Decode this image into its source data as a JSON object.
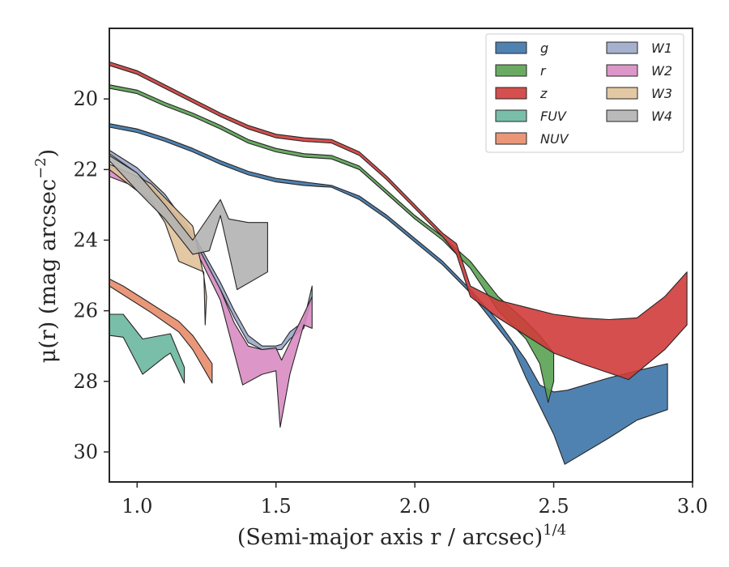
{
  "chart_data": {
    "type": "area",
    "xlabel": "(Semi-major axis r / arcsec)",
    "xlabel_exp": "1/4",
    "ylabel": "μ(r) (mag arcsec",
    "ylabel_exp": "−2",
    "xlim": [
      0.9,
      3.0
    ],
    "ylim": [
      30.85,
      18.0
    ],
    "y_inverted": true,
    "x_ticks": [
      1.0,
      1.5,
      2.0,
      2.5,
      3.0
    ],
    "x_tick_labels": [
      "1.0",
      "1.5",
      "2.0",
      "2.5",
      "3.0"
    ],
    "y_ticks": [
      20,
      22,
      24,
      26,
      28,
      30
    ],
    "y_tick_labels": [
      "20",
      "22",
      "24",
      "26",
      "28",
      "30"
    ],
    "grid": false,
    "legend_position": "top-right",
    "series": [
      {
        "name": "g",
        "color": "#3d74a8",
        "upper": [
          [
            0.9,
            20.7
          ],
          [
            1.0,
            20.85
          ],
          [
            1.1,
            21.1
          ],
          [
            1.2,
            21.4
          ],
          [
            1.3,
            21.75
          ],
          [
            1.4,
            22.05
          ],
          [
            1.5,
            22.25
          ],
          [
            1.6,
            22.35
          ],
          [
            1.65,
            22.4
          ],
          [
            1.7,
            22.45
          ],
          [
            1.8,
            22.75
          ],
          [
            1.9,
            23.3
          ],
          [
            2.0,
            23.95
          ],
          [
            2.1,
            24.6
          ],
          [
            2.2,
            25.4
          ],
          [
            2.3,
            26.3
          ],
          [
            2.4,
            27.4
          ],
          [
            2.45,
            28.1
          ],
          [
            2.5,
            28.3
          ],
          [
            2.55,
            28.25
          ],
          [
            2.7,
            27.9
          ],
          [
            2.8,
            27.7
          ],
          [
            2.91,
            27.5
          ]
        ],
        "lower": [
          [
            0.9,
            20.8
          ],
          [
            1.0,
            20.95
          ],
          [
            1.1,
            21.2
          ],
          [
            1.2,
            21.5
          ],
          [
            1.3,
            21.85
          ],
          [
            1.4,
            22.15
          ],
          [
            1.5,
            22.35
          ],
          [
            1.6,
            22.45
          ],
          [
            1.65,
            22.48
          ],
          [
            1.7,
            22.5
          ],
          [
            1.8,
            22.85
          ],
          [
            1.9,
            23.4
          ],
          [
            2.0,
            24.05
          ],
          [
            2.1,
            24.7
          ],
          [
            2.2,
            25.5
          ],
          [
            2.3,
            26.5
          ],
          [
            2.35,
            27.0
          ],
          [
            2.4,
            27.9
          ],
          [
            2.45,
            28.7
          ],
          [
            2.5,
            29.5
          ],
          [
            2.54,
            30.35
          ],
          [
            2.7,
            29.6
          ],
          [
            2.8,
            29.1
          ],
          [
            2.91,
            28.8
          ]
        ]
      },
      {
        "name": "r",
        "color": "#5aa252",
        "upper": [
          [
            0.9,
            19.6
          ],
          [
            1.0,
            19.75
          ],
          [
            1.1,
            20.1
          ],
          [
            1.2,
            20.4
          ],
          [
            1.3,
            20.75
          ],
          [
            1.4,
            21.15
          ],
          [
            1.5,
            21.4
          ],
          [
            1.6,
            21.55
          ],
          [
            1.7,
            21.6
          ],
          [
            1.8,
            21.9
          ],
          [
            1.9,
            22.6
          ],
          [
            2.0,
            23.3
          ],
          [
            2.1,
            23.9
          ],
          [
            2.2,
            24.6
          ],
          [
            2.3,
            25.6
          ],
          [
            2.4,
            26.3
          ],
          [
            2.45,
            26.7
          ],
          [
            2.5,
            27.2
          ]
        ],
        "lower": [
          [
            0.9,
            19.7
          ],
          [
            1.0,
            19.85
          ],
          [
            1.1,
            20.2
          ],
          [
            1.2,
            20.5
          ],
          [
            1.3,
            20.85
          ],
          [
            1.4,
            21.25
          ],
          [
            1.5,
            21.5
          ],
          [
            1.6,
            21.65
          ],
          [
            1.7,
            21.7
          ],
          [
            1.8,
            22.0
          ],
          [
            1.9,
            22.7
          ],
          [
            2.0,
            23.4
          ],
          [
            2.1,
            24.0
          ],
          [
            2.2,
            24.8
          ],
          [
            2.3,
            26.0
          ],
          [
            2.4,
            26.8
          ],
          [
            2.45,
            27.5
          ],
          [
            2.48,
            28.6
          ],
          [
            2.5,
            28.0
          ]
        ]
      },
      {
        "name": "z",
        "color": "#cf3c3a",
        "upper": [
          [
            0.9,
            18.95
          ],
          [
            1.0,
            19.2
          ],
          [
            1.1,
            19.6
          ],
          [
            1.2,
            20.0
          ],
          [
            1.3,
            20.4
          ],
          [
            1.4,
            20.75
          ],
          [
            1.5,
            21.0
          ],
          [
            1.6,
            21.1
          ],
          [
            1.7,
            21.15
          ],
          [
            1.8,
            21.5
          ],
          [
            1.9,
            22.2
          ],
          [
            2.0,
            23.0
          ],
          [
            2.1,
            23.8
          ],
          [
            2.15,
            24.1
          ],
          [
            2.2,
            25.3
          ],
          [
            2.3,
            25.7
          ],
          [
            2.4,
            25.9
          ],
          [
            2.5,
            26.1
          ],
          [
            2.6,
            26.2
          ],
          [
            2.7,
            26.25
          ],
          [
            2.8,
            26.2
          ],
          [
            2.9,
            25.6
          ],
          [
            2.98,
            24.9
          ]
        ],
        "lower": [
          [
            0.9,
            19.05
          ],
          [
            1.0,
            19.3
          ],
          [
            1.1,
            19.7
          ],
          [
            1.2,
            20.1
          ],
          [
            1.3,
            20.5
          ],
          [
            1.4,
            20.85
          ],
          [
            1.5,
            21.1
          ],
          [
            1.6,
            21.2
          ],
          [
            1.7,
            21.25
          ],
          [
            1.8,
            21.6
          ],
          [
            1.9,
            22.3
          ],
          [
            2.0,
            23.1
          ],
          [
            2.1,
            23.9
          ],
          [
            2.15,
            24.4
          ],
          [
            2.2,
            25.6
          ],
          [
            2.3,
            26.2
          ],
          [
            2.4,
            26.7
          ],
          [
            2.5,
            27.2
          ],
          [
            2.6,
            27.5
          ],
          [
            2.77,
            27.95
          ],
          [
            2.9,
            27.1
          ],
          [
            2.98,
            26.4
          ]
        ]
      },
      {
        "name": "FUV",
        "color": "#6ab79e",
        "upper": [
          [
            0.9,
            26.1
          ],
          [
            0.95,
            26.1
          ],
          [
            1.02,
            26.8
          ],
          [
            1.12,
            26.65
          ],
          [
            1.17,
            27.6
          ]
        ],
        "lower": [
          [
            0.9,
            26.7
          ],
          [
            0.95,
            26.75
          ],
          [
            1.02,
            27.8
          ],
          [
            1.1,
            27.3
          ],
          [
            1.12,
            27.2
          ],
          [
            1.17,
            28.05
          ]
        ]
      },
      {
        "name": "NUV",
        "color": "#e88c6a",
        "upper": [
          [
            0.9,
            25.1
          ],
          [
            0.95,
            25.3
          ],
          [
            1.05,
            25.8
          ],
          [
            1.15,
            26.3
          ],
          [
            1.2,
            26.7
          ],
          [
            1.27,
            27.5
          ]
        ],
        "lower": [
          [
            0.9,
            25.3
          ],
          [
            0.95,
            25.55
          ],
          [
            1.05,
            26.05
          ],
          [
            1.15,
            26.6
          ],
          [
            1.2,
            27.1
          ],
          [
            1.27,
            28.05
          ]
        ]
      },
      {
        "name": "W1",
        "color": "#9ba9c8",
        "upper": [
          [
            0.9,
            21.45
          ],
          [
            1.0,
            21.95
          ],
          [
            1.1,
            22.7
          ],
          [
            1.2,
            23.8
          ],
          [
            1.3,
            25.2
          ],
          [
            1.35,
            26.0
          ],
          [
            1.4,
            26.7
          ],
          [
            1.45,
            27.0
          ],
          [
            1.5,
            27.0
          ],
          [
            1.52,
            26.95
          ],
          [
            1.55,
            26.6
          ],
          [
            1.6,
            26.3
          ],
          [
            1.63,
            25.3
          ]
        ],
        "lower": [
          [
            0.9,
            21.55
          ],
          [
            1.0,
            22.1
          ],
          [
            1.1,
            22.9
          ],
          [
            1.2,
            24.0
          ],
          [
            1.3,
            25.4
          ],
          [
            1.35,
            26.2
          ],
          [
            1.4,
            26.9
          ],
          [
            1.45,
            27.1
          ],
          [
            1.5,
            27.1
          ],
          [
            1.52,
            27.1
          ],
          [
            1.55,
            26.8
          ],
          [
            1.6,
            26.5
          ],
          [
            1.63,
            25.6
          ]
        ]
      },
      {
        "name": "W2",
        "color": "#d88cc2",
        "upper": [
          [
            0.9,
            21.9
          ],
          [
            1.0,
            22.3
          ],
          [
            1.1,
            22.9
          ],
          [
            1.2,
            23.9
          ],
          [
            1.3,
            25.4
          ],
          [
            1.35,
            26.35
          ],
          [
            1.4,
            27.0
          ],
          [
            1.45,
            27.1
          ],
          [
            1.5,
            27.05
          ],
          [
            1.52,
            27.4
          ],
          [
            1.55,
            26.9
          ],
          [
            1.6,
            26.1
          ],
          [
            1.63,
            25.6
          ]
        ],
        "lower": [
          [
            0.9,
            22.2
          ],
          [
            1.0,
            22.5
          ],
          [
            1.1,
            23.1
          ],
          [
            1.2,
            24.1
          ],
          [
            1.3,
            25.7
          ],
          [
            1.38,
            28.1
          ],
          [
            1.45,
            27.8
          ],
          [
            1.5,
            27.7
          ],
          [
            1.515,
            29.3
          ],
          [
            1.55,
            27.8
          ],
          [
            1.6,
            26.4
          ],
          [
            1.63,
            26.5
          ]
        ]
      },
      {
        "name": "W3",
        "color": "#e0c299",
        "upper": [
          [
            0.9,
            21.85
          ],
          [
            1.0,
            22.2
          ],
          [
            1.05,
            22.4
          ],
          [
            1.1,
            22.8
          ],
          [
            1.2,
            23.6
          ],
          [
            1.24,
            25.0
          ],
          [
            1.25,
            25.6
          ]
        ],
        "lower": [
          [
            0.9,
            22.0
          ],
          [
            1.0,
            22.6
          ],
          [
            1.05,
            22.9
          ],
          [
            1.1,
            23.5
          ],
          [
            1.15,
            24.6
          ],
          [
            1.24,
            24.9
          ],
          [
            1.245,
            26.4
          ]
        ]
      },
      {
        "name": "W4",
        "color": "#b2b2b2",
        "upper": [
          [
            0.9,
            21.6
          ],
          [
            1.0,
            22.1
          ],
          [
            1.1,
            23.0
          ],
          [
            1.2,
            24.0
          ],
          [
            1.3,
            22.85
          ],
          [
            1.33,
            23.4
          ],
          [
            1.4,
            23.5
          ],
          [
            1.47,
            23.5
          ]
        ],
        "lower": [
          [
            0.9,
            21.75
          ],
          [
            1.0,
            22.6
          ],
          [
            1.1,
            23.4
          ],
          [
            1.2,
            24.4
          ],
          [
            1.26,
            24.3
          ],
          [
            1.3,
            23.3
          ],
          [
            1.36,
            25.4
          ],
          [
            1.47,
            24.9
          ]
        ]
      }
    ]
  }
}
